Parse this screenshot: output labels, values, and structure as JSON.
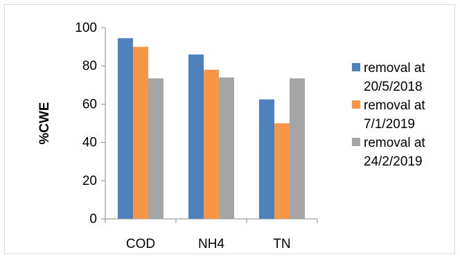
{
  "chart_data": {
    "type": "bar",
    "categories": [
      "COD",
      "NH4",
      "TN"
    ],
    "series": [
      {
        "name_lines": [
          "removal at",
          "20/5/2018"
        ],
        "color": "#4f81bd",
        "values": [
          94.5,
          86,
          62.5
        ]
      },
      {
        "name_lines": [
          "removal at",
          "7/1/2019"
        ],
        "color": "#f79646",
        "values": [
          90,
          78,
          50
        ]
      },
      {
        "name_lines": [
          "removal at",
          "24/2/2019"
        ],
        "color": "#a5a5a5",
        "values": [
          73.5,
          74,
          73.5
        ]
      }
    ],
    "xlabel": "",
    "ylabel": "%CWE",
    "ylim": [
      0,
      100
    ],
    "yticks": [
      0,
      20,
      40,
      60,
      80,
      100
    ],
    "grid": false,
    "legend_position": "right"
  }
}
